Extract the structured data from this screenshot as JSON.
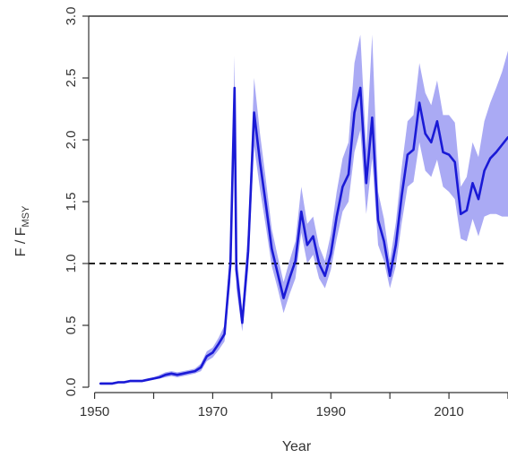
{
  "chart_data": {
    "type": "line",
    "xlabel": "Year",
    "ylabel_main": "F / F",
    "ylabel_sub": "MSY",
    "xlim": [
      1949,
      2020
    ],
    "ylim": [
      0.0,
      3.0
    ],
    "xticks": [
      1950,
      1970,
      1990,
      2010
    ],
    "xticks_minor": [
      1950,
      1960,
      1970,
      1980,
      1990,
      2000,
      2010,
      2020
    ],
    "yticks": [
      0.0,
      0.5,
      1.0,
      1.5,
      2.0,
      2.5,
      3.0
    ],
    "ytick_labels": [
      "0.0",
      "0.5",
      "1.0",
      "1.5",
      "2.0",
      "2.5",
      "3.0"
    ],
    "xtick_labels": [
      "1950",
      "1970",
      "1990",
      "2010"
    ],
    "reference_line": 1.0,
    "colors": {
      "line": "#1a1ad6",
      "band": "#9b9bf2",
      "reference": "#222222"
    },
    "series": [
      {
        "x": [
          1951,
          1952,
          1953,
          1954,
          1955,
          1956,
          1957,
          1958,
          1959,
          1960,
          1961,
          1962,
          1963,
          1964,
          1965,
          1966,
          1967,
          1968,
          1969,
          1970,
          1971,
          1972,
          1973,
          1973.7,
          1974,
          1975,
          1976,
          1977,
          1978,
          1979,
          1980,
          1981,
          1982,
          1983,
          1984,
          1985,
          1986,
          1987,
          1988,
          1989,
          1990,
          1991,
          1992,
          1993,
          1994,
          1995,
          1996,
          1997,
          1998,
          1999,
          2000,
          2001,
          2002,
          2003,
          2004,
          2005,
          2006,
          2007,
          2008,
          2009,
          2010,
          2011,
          2012,
          2013,
          2014,
          2015,
          2016,
          2017,
          2018,
          2019,
          2020
        ],
        "y": [
          0.03,
          0.03,
          0.03,
          0.04,
          0.04,
          0.05,
          0.05,
          0.05,
          0.06,
          0.07,
          0.08,
          0.1,
          0.11,
          0.1,
          0.11,
          0.12,
          0.13,
          0.16,
          0.25,
          0.28,
          0.35,
          0.43,
          1.0,
          2.42,
          0.95,
          0.52,
          1.1,
          2.22,
          1.82,
          1.48,
          1.12,
          0.92,
          0.72,
          0.88,
          1.02,
          1.42,
          1.15,
          1.22,
          1.0,
          0.9,
          1.08,
          1.38,
          1.62,
          1.72,
          2.22,
          2.42,
          1.65,
          2.18,
          1.35,
          1.18,
          0.9,
          1.15,
          1.55,
          1.88,
          1.92,
          2.3,
          2.05,
          1.98,
          2.15,
          1.9,
          1.88,
          1.82,
          1.4,
          1.43,
          1.65,
          1.52,
          1.75,
          1.85,
          1.9,
          1.96,
          2.02
        ],
        "lower": [
          0.02,
          0.02,
          0.02,
          0.03,
          0.03,
          0.04,
          0.04,
          0.04,
          0.05,
          0.06,
          0.07,
          0.08,
          0.09,
          0.08,
          0.09,
          0.1,
          0.11,
          0.13,
          0.21,
          0.24,
          0.3,
          0.37,
          0.85,
          2.1,
          0.8,
          0.45,
          0.95,
          1.95,
          1.6,
          1.3,
          0.98,
          0.8,
          0.6,
          0.75,
          0.88,
          1.25,
          1.0,
          1.07,
          0.88,
          0.8,
          0.95,
          1.2,
          1.42,
          1.5,
          1.9,
          2.08,
          1.4,
          1.85,
          1.15,
          1.02,
          0.8,
          0.98,
          1.33,
          1.62,
          1.66,
          1.98,
          1.75,
          1.7,
          1.84,
          1.62,
          1.58,
          1.52,
          1.2,
          1.18,
          1.36,
          1.22,
          1.38,
          1.4,
          1.4,
          1.38,
          1.38
        ],
        "upper": [
          0.04,
          0.04,
          0.04,
          0.05,
          0.05,
          0.06,
          0.06,
          0.06,
          0.07,
          0.08,
          0.1,
          0.12,
          0.13,
          0.12,
          0.13,
          0.14,
          0.15,
          0.19,
          0.29,
          0.32,
          0.4,
          0.5,
          1.15,
          2.68,
          1.1,
          0.62,
          1.28,
          2.5,
          2.05,
          1.68,
          1.28,
          1.06,
          0.85,
          1.02,
          1.18,
          1.62,
          1.32,
          1.38,
          1.14,
          1.02,
          1.24,
          1.58,
          1.85,
          1.98,
          2.62,
          2.85,
          1.92,
          2.85,
          1.58,
          1.36,
          1.02,
          1.33,
          1.78,
          2.15,
          2.2,
          2.62,
          2.38,
          2.28,
          2.48,
          2.2,
          2.2,
          2.14,
          1.62,
          1.7,
          1.98,
          1.86,
          2.15,
          2.3,
          2.42,
          2.55,
          2.72
        ]
      }
    ]
  }
}
